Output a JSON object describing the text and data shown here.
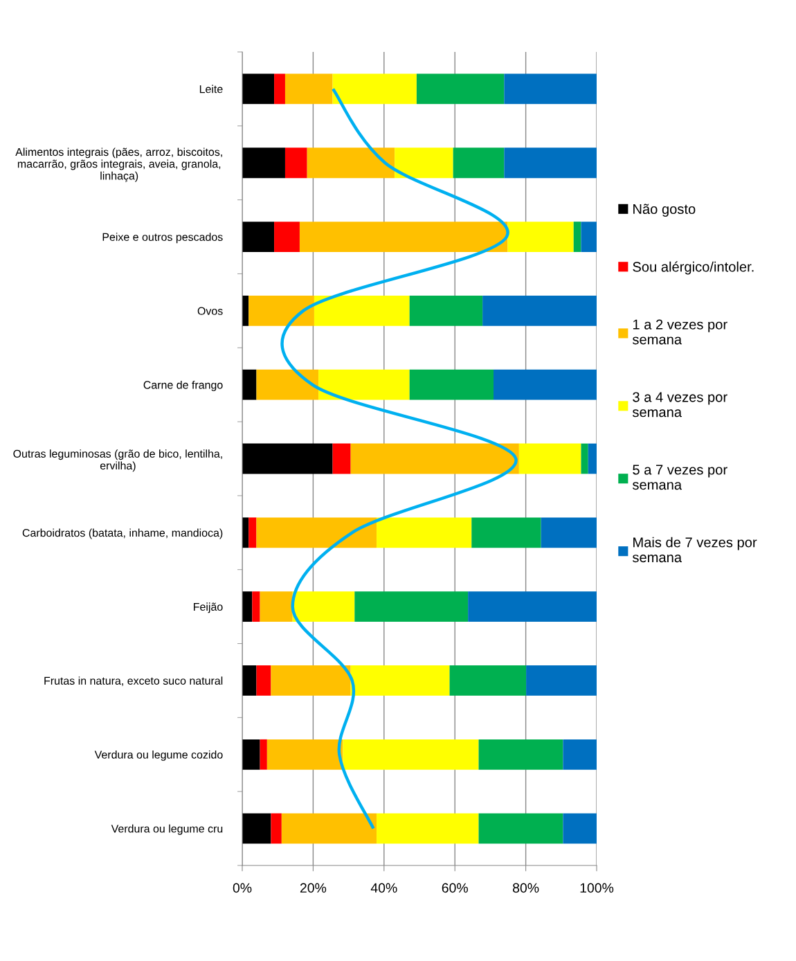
{
  "chart_data": {
    "type": "bar",
    "orientation": "horizontal",
    "stacked": true,
    "categories": [
      "Leite",
      "Alimentos integrais (pães, arroz, biscoitos, macarrão, grãos integrais, aveia, granola, linhaça)",
      "Peixe e outros pescados",
      "Ovos",
      "Carne de frango",
      "Outras leguminosas (grão de bico, lentilha, ervilha)",
      "Carboidratos (batata, inhame, mandioca)",
      "Feijão",
      "Frutas in natura, exceto suco natural",
      "Verdura ou legume cozido",
      "Verdura ou legume cru"
    ],
    "series": [
      {
        "name": "Não gosto",
        "color": "#000000",
        "values": [
          9.0,
          12.1,
          9.0,
          1.8,
          4.0,
          25.5,
          1.8,
          2.8,
          4.0,
          5.0,
          8.1
        ]
      },
      {
        "name": "Sou alérgico/intoler.",
        "color": "#ff0000",
        "values": [
          3.1,
          6.2,
          7.2,
          0,
          0,
          5.1,
          2.2,
          2.2,
          4.1,
          2.0,
          3.0
        ]
      },
      {
        "name": "1 a 2 vezes por semana",
        "color": "#ffc000",
        "values": [
          13.4,
          24.7,
          58.7,
          18.5,
          17.5,
          47.5,
          33.9,
          9.2,
          22.5,
          21.4,
          26.8
        ]
      },
      {
        "name": "3 a 4 vezes por semana",
        "color": "#ffff00",
        "values": [
          23.7,
          16.5,
          18.6,
          26.9,
          25.7,
          17.5,
          26.8,
          17.5,
          27.9,
          38.3,
          28.8
        ]
      },
      {
        "name": "5 a 7 vezes por semana",
        "color": "#00b050",
        "values": [
          24.7,
          14.4,
          2.1,
          20.6,
          23.7,
          2.0,
          19.6,
          32.0,
          21.6,
          23.8,
          23.8
        ]
      },
      {
        "name": "Mais de 7 vezes por semana",
        "color": "#0070c0",
        "values": [
          26.1,
          26.1,
          4.4,
          32.2,
          29.1,
          2.4,
          15.7,
          36.3,
          19.9,
          9.5,
          9.5
        ]
      },
      {
        "type": "line",
        "color": "#00b0f0",
        "values": [
          25.6,
          40.3,
          74.6,
          17.2,
          19.8,
          77.2,
          31.0,
          14.2,
          31.0,
          27.4,
          37.0
        ]
      }
    ],
    "xlim": [
      0,
      100
    ],
    "xticks": [
      {
        "value": 0,
        "label": "0%"
      },
      {
        "value": 20,
        "label": "20%"
      },
      {
        "value": 40,
        "label": "40%"
      },
      {
        "value": 60,
        "label": "60%"
      },
      {
        "value": 80,
        "label": "80%"
      },
      {
        "value": 100,
        "label": "100%"
      }
    ],
    "grid": "x",
    "legend": "right"
  }
}
